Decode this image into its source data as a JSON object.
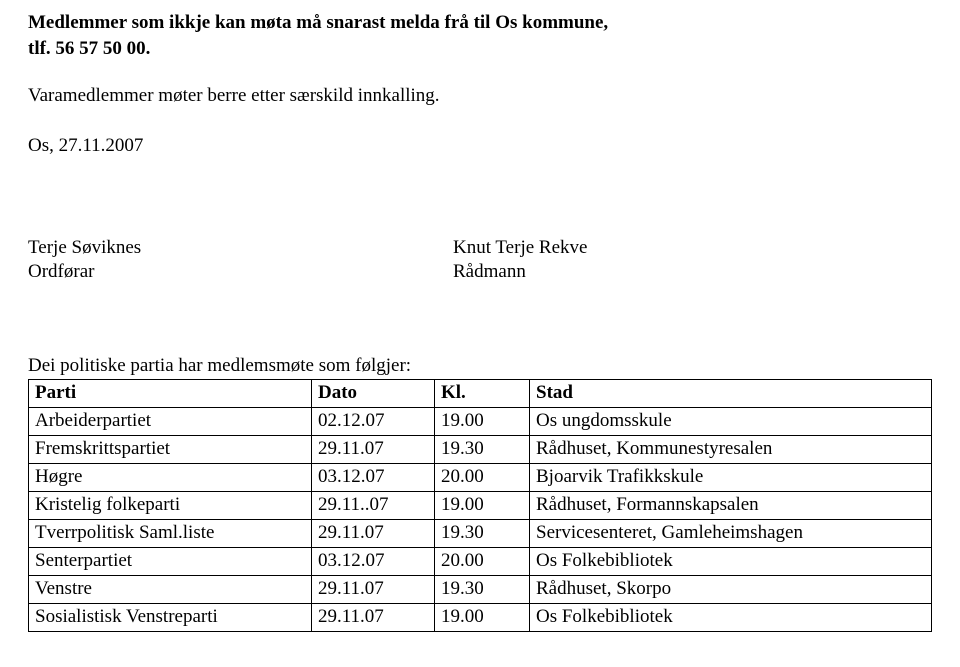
{
  "intro": {
    "line1": "Medlemmer som ikkje kan møta må snarast melda frå til Os kommune,",
    "line2": "tlf. 56 57 50 00.",
    "line3": "Varamedlemmer møter berre etter særskild innkalling."
  },
  "date": "Os, 27.11.2007",
  "signatures": {
    "left": {
      "name": "Terje Søviknes",
      "title": "Ordførar"
    },
    "right": {
      "name": "Knut Terje Rekve",
      "title": "Rådmann"
    }
  },
  "meetings": {
    "heading": "Dei politiske partia har medlemsmøte som følgjer:",
    "headers": {
      "parti": "Parti",
      "dato": "Dato",
      "kl": "Kl.",
      "stad": "Stad"
    },
    "rows": [
      {
        "parti": "Arbeiderpartiet",
        "dato": "02.12.07",
        "kl": "19.00",
        "stad": "Os ungdomsskule"
      },
      {
        "parti": "Fremskrittspartiet",
        "dato": "29.11.07",
        "kl": "19.30",
        "stad": "Rådhuset, Kommunestyresalen"
      },
      {
        "parti": "Høgre",
        "dato": "03.12.07",
        "kl": "20.00",
        "stad": "Bjoarvik Trafikkskule"
      },
      {
        "parti": "Kristelig folkeparti",
        "dato": "29.11..07",
        "kl": "19.00",
        "stad": "Rådhuset, Formannskapsalen"
      },
      {
        "parti": "Tverrpolitisk Saml.liste",
        "dato": "29.11.07",
        "kl": "19.30",
        "stad": "Servicesenteret, Gamleheimshagen"
      },
      {
        "parti": "Senterpartiet",
        "dato": "03.12.07",
        "kl": "20.00",
        "stad": "Os Folkebibliotek"
      },
      {
        "parti": "Venstre",
        "dato": "29.11.07",
        "kl": "19.30",
        "stad": "Rådhuset, Skorpo"
      },
      {
        "parti": "Sosialistisk Venstreparti",
        "dato": "29.11.07",
        "kl": "19.00",
        "stad": "Os Folkebibliotek"
      }
    ]
  }
}
